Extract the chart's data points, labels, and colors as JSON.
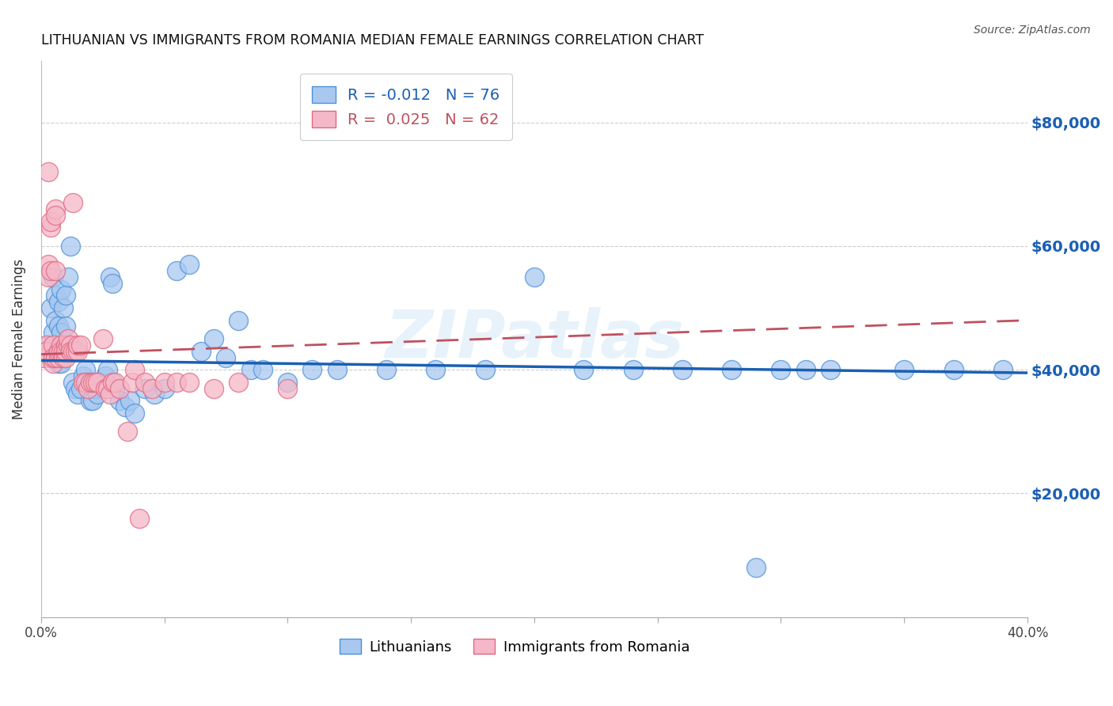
{
  "title": "LITHUANIAN VS IMMIGRANTS FROM ROMANIA MEDIAN FEMALE EARNINGS CORRELATION CHART",
  "source": "Source: ZipAtlas.com",
  "ylabel": "Median Female Earnings",
  "xlim": [
    0.0,
    0.4
  ],
  "ylim": [
    0,
    90000
  ],
  "yticks": [
    0,
    20000,
    40000,
    60000,
    80000
  ],
  "xticks": [
    0.0,
    0.05,
    0.1,
    0.15,
    0.2,
    0.25,
    0.3,
    0.35,
    0.4
  ],
  "xtick_labels": [
    "0.0%",
    "",
    "",
    "",
    "",
    "",
    "",
    "",
    "40.0%"
  ],
  "blue_r": "-0.012",
  "blue_n": "76",
  "pink_r": "0.025",
  "pink_n": "62",
  "blue_color": "#a8c8f0",
  "pink_color": "#f5b8c8",
  "blue_edge_color": "#4a90d9",
  "pink_edge_color": "#e06880",
  "blue_line_color": "#1a5fb4",
  "pink_line_color": "#c05060",
  "watermark": "ZIPatlas",
  "legend_label_blue": "Lithuanians",
  "legend_label_pink": "Immigrants from Romania",
  "blue_x": [
    0.002,
    0.003,
    0.004,
    0.004,
    0.005,
    0.005,
    0.005,
    0.006,
    0.006,
    0.006,
    0.007,
    0.007,
    0.007,
    0.007,
    0.008,
    0.008,
    0.008,
    0.008,
    0.009,
    0.009,
    0.01,
    0.01,
    0.011,
    0.011,
    0.012,
    0.013,
    0.014,
    0.015,
    0.016,
    0.017,
    0.018,
    0.019,
    0.02,
    0.021,
    0.022,
    0.023,
    0.024,
    0.025,
    0.026,
    0.027,
    0.028,
    0.029,
    0.03,
    0.032,
    0.034,
    0.036,
    0.038,
    0.042,
    0.046,
    0.05,
    0.055,
    0.06,
    0.065,
    0.07,
    0.075,
    0.08,
    0.085,
    0.09,
    0.1,
    0.11,
    0.12,
    0.14,
    0.16,
    0.18,
    0.2,
    0.22,
    0.24,
    0.26,
    0.28,
    0.3,
    0.32,
    0.35,
    0.37,
    0.39,
    0.29,
    0.31
  ],
  "blue_y": [
    43000,
    44000,
    50000,
    42000,
    46000,
    55000,
    43000,
    48000,
    52000,
    42000,
    47000,
    51000,
    44000,
    41000,
    53000,
    46000,
    43000,
    41000,
    50000,
    44000,
    52000,
    47000,
    55000,
    43000,
    60000,
    38000,
    37000,
    36000,
    37000,
    39000,
    40000,
    38000,
    35000,
    35000,
    37000,
    36000,
    38000,
    38000,
    39000,
    40000,
    55000,
    54000,
    37000,
    35000,
    34000,
    35000,
    33000,
    37000,
    36000,
    37000,
    56000,
    57000,
    43000,
    45000,
    42000,
    48000,
    40000,
    40000,
    38000,
    40000,
    40000,
    40000,
    40000,
    40000,
    55000,
    40000,
    40000,
    40000,
    40000,
    40000,
    40000,
    40000,
    40000,
    40000,
    8000,
    40000
  ],
  "pink_x": [
    0.001,
    0.002,
    0.002,
    0.003,
    0.003,
    0.003,
    0.004,
    0.004,
    0.004,
    0.005,
    0.005,
    0.005,
    0.006,
    0.006,
    0.006,
    0.006,
    0.007,
    0.007,
    0.007,
    0.008,
    0.008,
    0.009,
    0.009,
    0.01,
    0.01,
    0.01,
    0.011,
    0.011,
    0.012,
    0.012,
    0.013,
    0.013,
    0.014,
    0.015,
    0.015,
    0.016,
    0.017,
    0.018,
    0.019,
    0.02,
    0.021,
    0.022,
    0.023,
    0.025,
    0.026,
    0.027,
    0.028,
    0.029,
    0.03,
    0.032,
    0.035,
    0.037,
    0.038,
    0.04,
    0.042,
    0.045,
    0.05,
    0.055,
    0.06,
    0.07,
    0.08,
    0.1
  ],
  "pink_y": [
    42000,
    44000,
    43000,
    72000,
    57000,
    55000,
    63000,
    64000,
    56000,
    44000,
    41000,
    42000,
    66000,
    65000,
    56000,
    42000,
    43000,
    42000,
    43000,
    44000,
    43000,
    43000,
    42000,
    42000,
    44000,
    43000,
    44000,
    45000,
    44000,
    43000,
    43000,
    67000,
    43000,
    43000,
    44000,
    44000,
    38000,
    38000,
    37000,
    38000,
    38000,
    38000,
    38000,
    45000,
    37000,
    37000,
    36000,
    38000,
    38000,
    37000,
    30000,
    38000,
    40000,
    16000,
    38000,
    37000,
    38000,
    38000,
    38000,
    37000,
    38000,
    37000
  ],
  "blue_trend_x": [
    0.0,
    0.4
  ],
  "blue_trend_y": [
    41500,
    39500
  ],
  "pink_trend_x": [
    0.0,
    0.4
  ],
  "pink_trend_y": [
    42500,
    48000
  ]
}
